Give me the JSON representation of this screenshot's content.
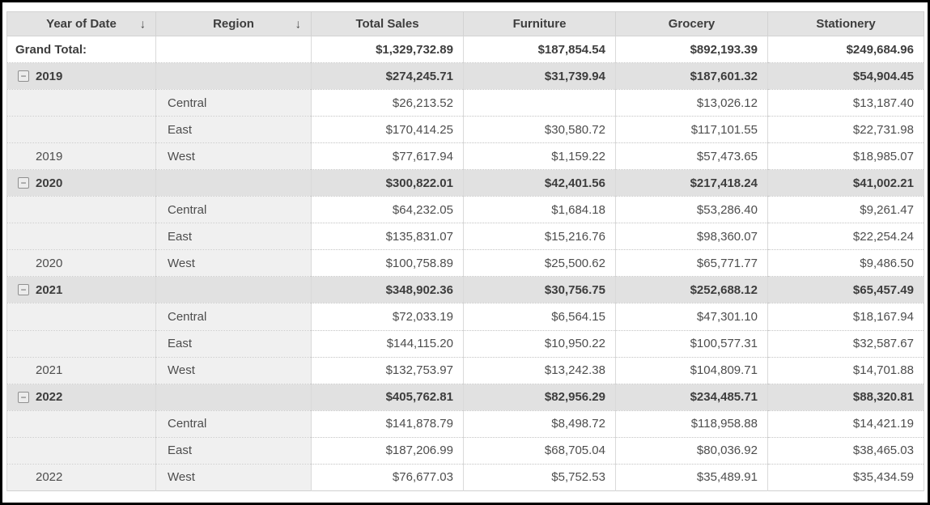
{
  "colors": {
    "frame_border": "#000000",
    "header_bg": "#e3e3e3",
    "group_row_bg": "#e1e1e1",
    "row_label_bg": "#f0f0f0",
    "grid_line": "#d2d2d2",
    "row_divider": "#c3c3c3",
    "text": "#4d4d4d",
    "text_bold": "#3d3d3d"
  },
  "table": {
    "sort_icon": "↓",
    "collapse_icon": "−",
    "columns": [
      {
        "label": "Year of Date",
        "sortable": true
      },
      {
        "label": "Region",
        "sortable": true
      },
      {
        "label": "Total Sales",
        "sortable": false
      },
      {
        "label": "Furniture",
        "sortable": false
      },
      {
        "label": "Grocery",
        "sortable": false
      },
      {
        "label": "Stationery",
        "sortable": false
      }
    ],
    "grand_total": {
      "label": "Grand Total:",
      "values": [
        "$1,329,732.89",
        "$187,854.54",
        "$892,193.39",
        "$249,684.96"
      ]
    },
    "groups": [
      {
        "year": "2019",
        "totals": [
          "$274,245.71",
          "$31,739.94",
          "$187,601.32",
          "$54,904.45"
        ],
        "rows": [
          {
            "region": "Central",
            "values": [
              "$26,213.52",
              "",
              "$13,026.12",
              "$13,187.40"
            ]
          },
          {
            "region": "East",
            "values": [
              "$170,414.25",
              "$30,580.72",
              "$117,101.55",
              "$22,731.98"
            ]
          },
          {
            "region": "West",
            "values": [
              "$77,617.94",
              "$1,159.22",
              "$57,473.65",
              "$18,985.07"
            ]
          }
        ]
      },
      {
        "year": "2020",
        "totals": [
          "$300,822.01",
          "$42,401.56",
          "$217,418.24",
          "$41,002.21"
        ],
        "rows": [
          {
            "region": "Central",
            "values": [
              "$64,232.05",
              "$1,684.18",
              "$53,286.40",
              "$9,261.47"
            ]
          },
          {
            "region": "East",
            "values": [
              "$135,831.07",
              "$15,216.76",
              "$98,360.07",
              "$22,254.24"
            ]
          },
          {
            "region": "West",
            "values": [
              "$100,758.89",
              "$25,500.62",
              "$65,771.77",
              "$9,486.50"
            ]
          }
        ]
      },
      {
        "year": "2021",
        "totals": [
          "$348,902.36",
          "$30,756.75",
          "$252,688.12",
          "$65,457.49"
        ],
        "rows": [
          {
            "region": "Central",
            "values": [
              "$72,033.19",
              "$6,564.15",
              "$47,301.10",
              "$18,167.94"
            ]
          },
          {
            "region": "East",
            "values": [
              "$144,115.20",
              "$10,950.22",
              "$100,577.31",
              "$32,587.67"
            ]
          },
          {
            "region": "West",
            "values": [
              "$132,753.97",
              "$13,242.38",
              "$104,809.71",
              "$14,701.88"
            ]
          }
        ]
      },
      {
        "year": "2022",
        "totals": [
          "$405,762.81",
          "$82,956.29",
          "$234,485.71",
          "$88,320.81"
        ],
        "rows": [
          {
            "region": "Central",
            "values": [
              "$141,878.79",
              "$8,498.72",
              "$118,958.88",
              "$14,421.19"
            ]
          },
          {
            "region": "East",
            "values": [
              "$187,206.99",
              "$68,705.04",
              "$80,036.92",
              "$38,465.03"
            ]
          },
          {
            "region": "West",
            "values": [
              "$76,677.03",
              "$5,752.53",
              "$35,489.91",
              "$35,434.59"
            ]
          }
        ]
      }
    ]
  }
}
